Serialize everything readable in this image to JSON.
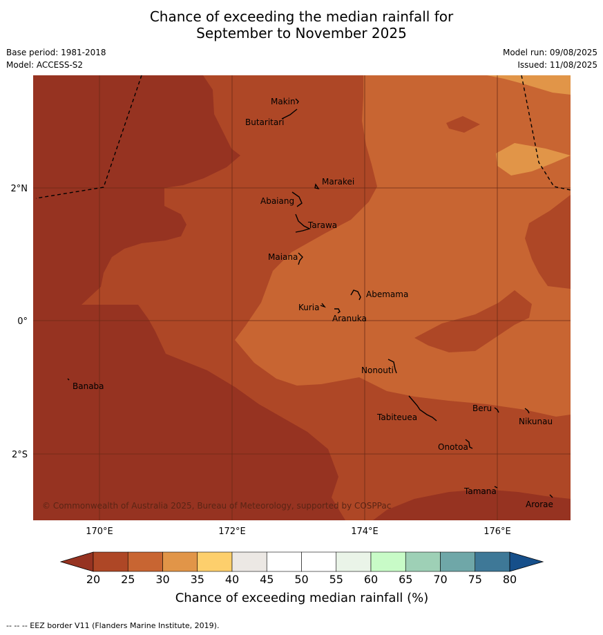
{
  "title": {
    "line1": "Chance of exceeding the median rainfall for",
    "line2": "September to November 2025"
  },
  "meta": {
    "base_period": "Base period: 1981-2018",
    "model": "Model: ACCESS-S2",
    "model_run": "Model run: 09/08/2025",
    "issued": "Issued: 11/08/2025"
  },
  "map": {
    "lat_labels": [
      "2°N",
      "0°",
      "2°S"
    ],
    "lon_labels": [
      "170°E",
      "172°E",
      "174°E",
      "176°E"
    ],
    "places": [
      "Makin",
      "Butaritari",
      "Marakei",
      "Abaiang",
      "Tarawa",
      "Maiana",
      "Abemama",
      "Kuria",
      "Aranuka",
      "Nonouti",
      "Banaba",
      "Beru",
      "Nikunau",
      "Tabiteuea",
      "Onotoa",
      "Tamana",
      "Arorae"
    ],
    "copyright": "© Commonwealth of Australia 2025, Bureau of Meteorology, supported by COSPPac",
    "colors": {
      "c20_25": "#963321",
      "c25_30": "#ae4726",
      "c30_35": "#c86532",
      "c35_40": "#e19548",
      "eez": "#000000"
    }
  },
  "colorbar": {
    "ticks": [
      "20",
      "25",
      "30",
      "35",
      "40",
      "45",
      "50",
      "55",
      "60",
      "65",
      "70",
      "75",
      "80"
    ],
    "colors": [
      "#ae4726",
      "#c86532",
      "#e19548",
      "#fdcf6c",
      "#ece8e4",
      "#ffffff",
      "#ffffff",
      "#eaf4e8",
      "#c8fbc7",
      "#9ed0b6",
      "#6fa7a8",
      "#3e7897"
    ],
    "under_color": "#963321",
    "over_color": "#164f8a",
    "label": "Chance of exceeding median rainfall (%)"
  },
  "footer": "--  --  -- EEZ border V11 (Flanders Marine Institute, 2019)."
}
